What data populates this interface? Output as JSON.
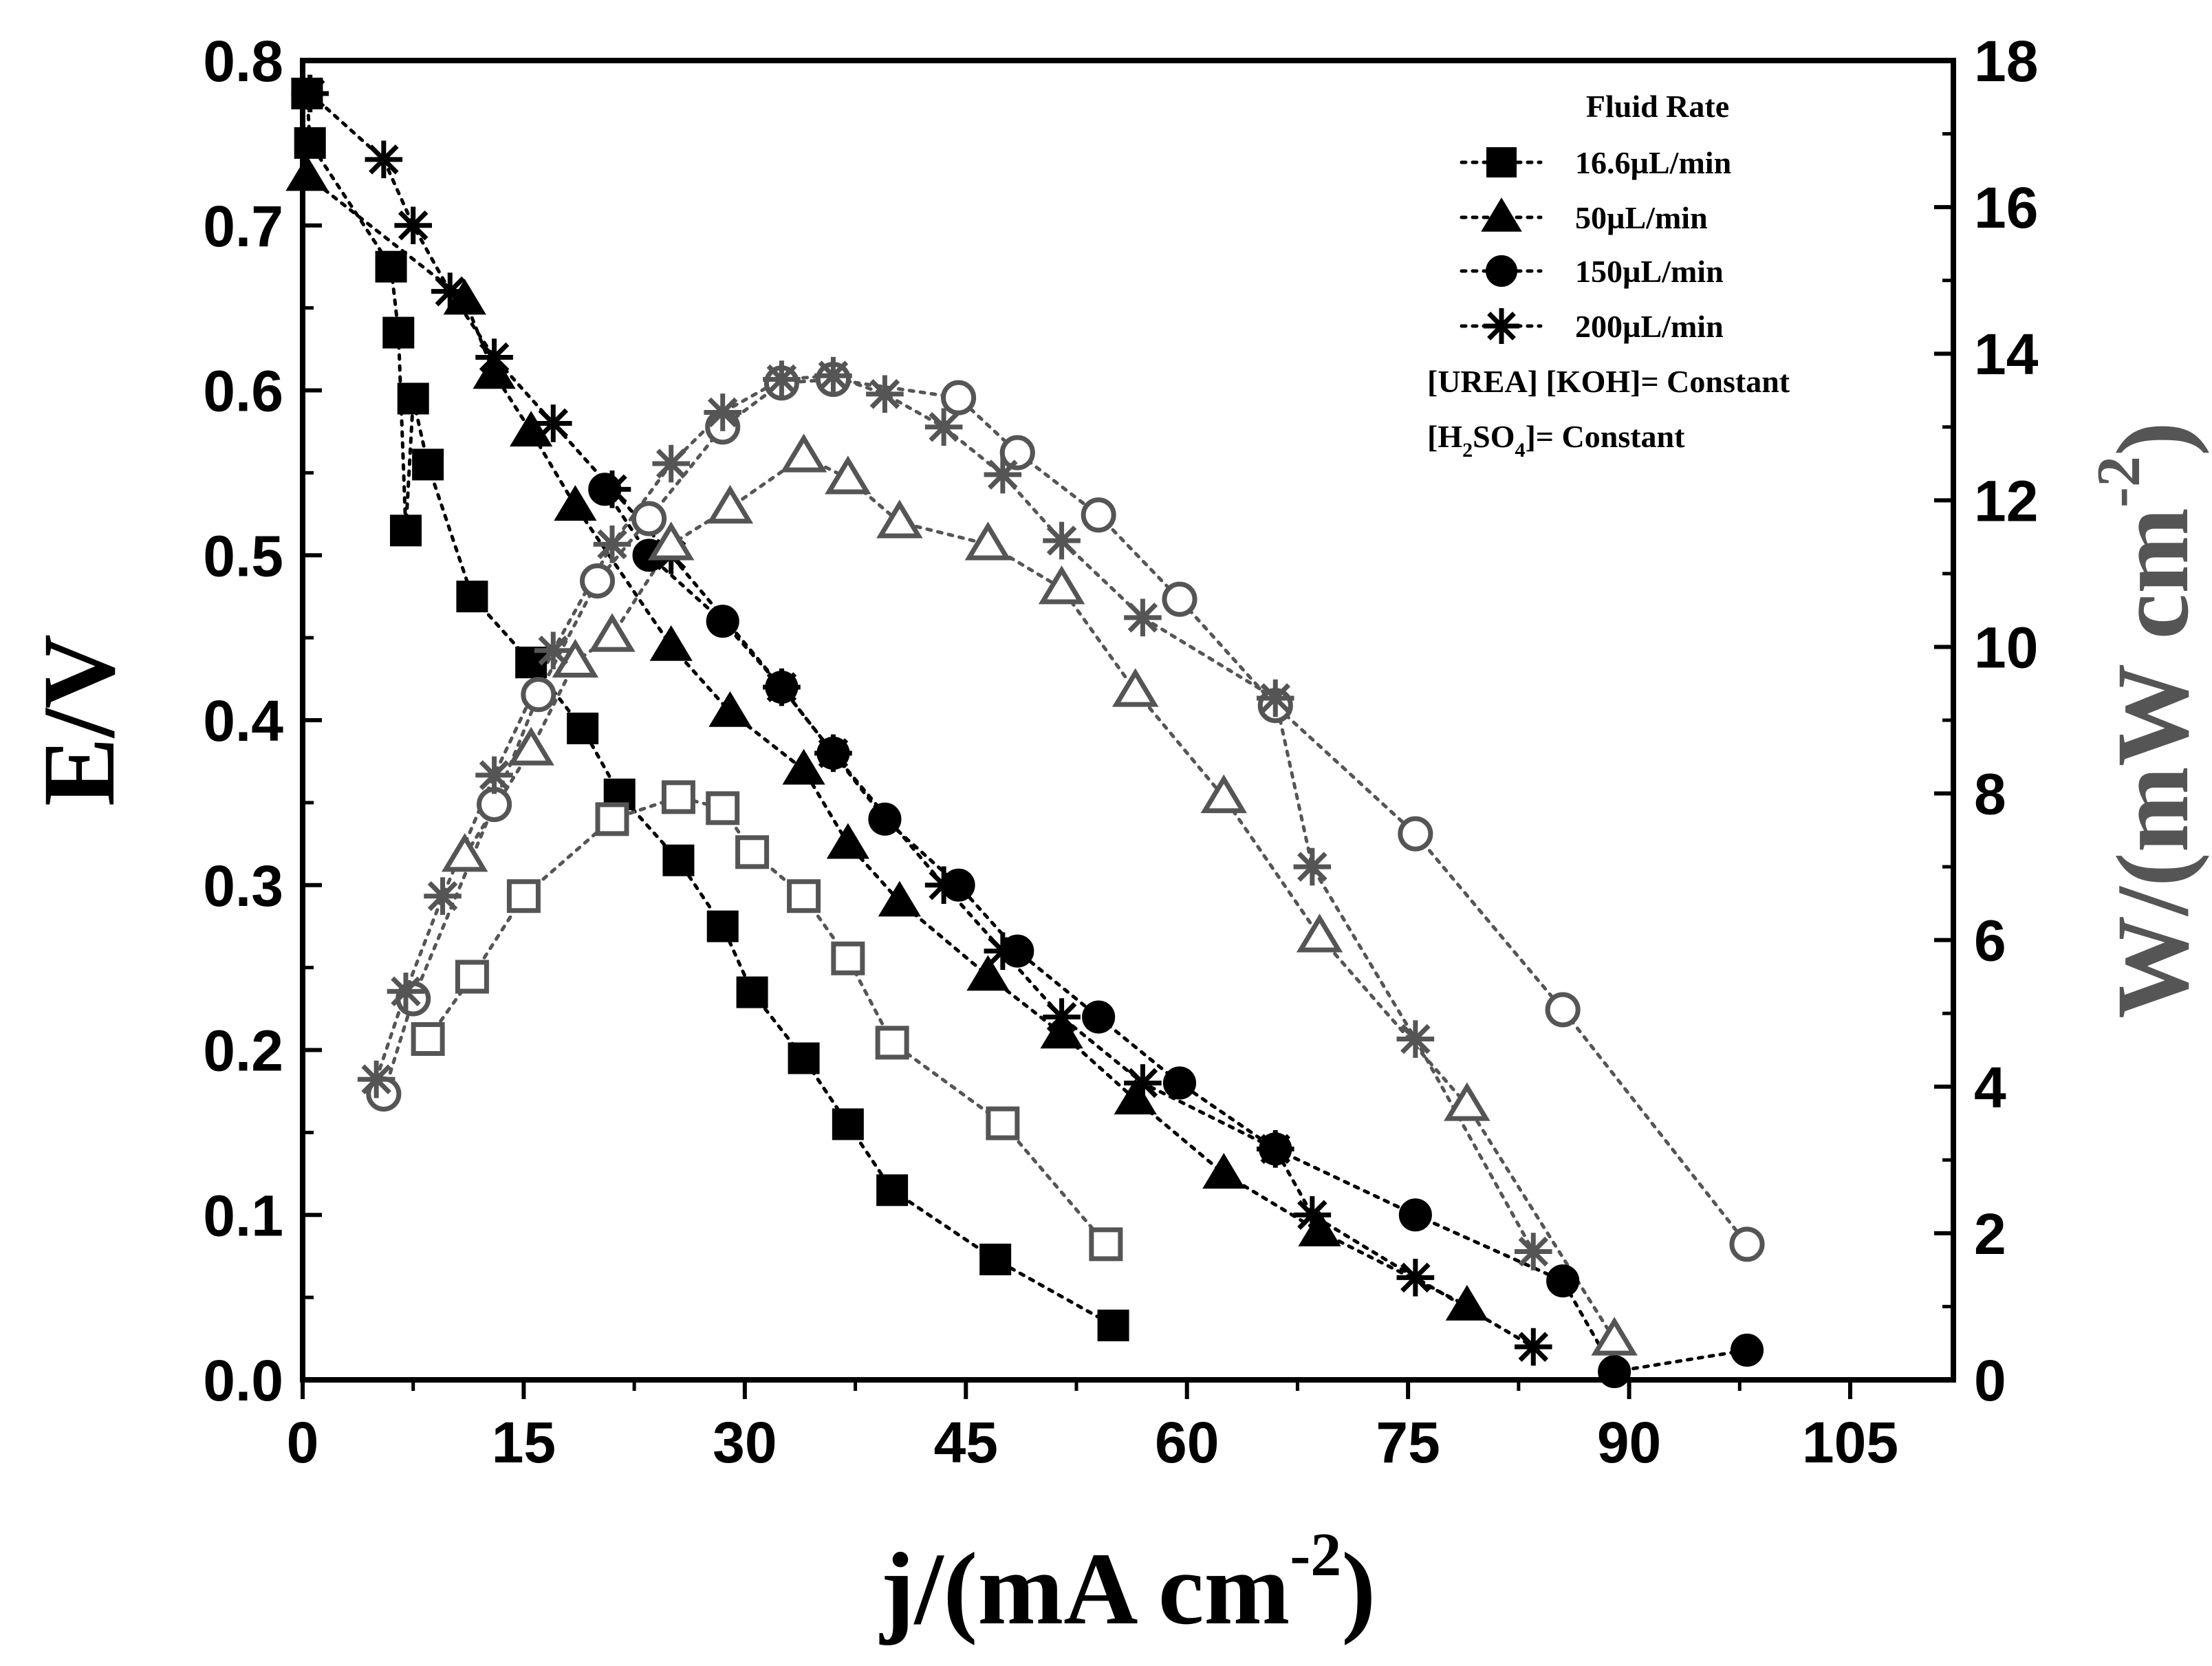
{
  "chart_data": {
    "type": "scatter",
    "x_axis": {
      "label_main": "j/(mA cm",
      "label_sup": "-2",
      "label_close": ")",
      "range": [
        0,
        112
      ],
      "ticks": [
        0,
        15,
        30,
        45,
        60,
        75,
        90,
        105
      ],
      "tick_labels": [
        "0",
        "15",
        "30",
        "45",
        "60",
        "75",
        "90",
        "105"
      ]
    },
    "y_left": {
      "label": "E/V",
      "range": [
        0,
        0.8
      ],
      "ticks": [
        0,
        0.1,
        0.2,
        0.3,
        0.4,
        0.5,
        0.6,
        0.7,
        0.8
      ],
      "tick_labels": [
        "0.0",
        "0.1",
        "0.2",
        "0.3",
        "0.4",
        "0.5",
        "0.6",
        "0.7",
        "0.8"
      ]
    },
    "y_right": {
      "label_main": "W/(mW cm",
      "label_sup": "-2",
      "label_close": ")",
      "range": [
        0,
        18
      ],
      "ticks": [
        0,
        2,
        4,
        6,
        8,
        10,
        12,
        14,
        16,
        18
      ],
      "tick_labels": [
        "0",
        "2",
        "4",
        "6",
        "8",
        "10",
        "12",
        "14",
        "16",
        "18"
      ],
      "color": "#555555"
    },
    "legend": {
      "title": "Fluid Rate",
      "entries": [
        "16.6µL/min",
        "50µL/min",
        "150µL/min",
        "200µL/min"
      ],
      "note1": "[UREA] [KOH]= Constant",
      "note2_pre": "[H",
      "note2_sub": "2",
      "note2_mid": "SO",
      "note2_sub2": "4",
      "note2_post": "]= Constant",
      "position": "top-right"
    },
    "colors": {
      "polarization": "#000000",
      "power": "#555555"
    },
    "series": [
      {
        "name": "16.6µL/min",
        "kind": "polarization",
        "axis": "left",
        "marker": "square",
        "filled": true,
        "x": [
          0.3,
          0.5,
          6,
          6.5,
          7.5,
          7,
          8.5,
          11.5,
          15.5,
          19,
          21.5,
          25.5,
          28.5,
          30.5,
          34,
          37,
          40,
          47,
          55
        ],
        "y": [
          0.78,
          0.75,
          0.675,
          0.635,
          0.595,
          0.515,
          0.555,
          0.475,
          0.435,
          0.395,
          0.355,
          0.315,
          0.275,
          0.235,
          0.195,
          0.155,
          0.115,
          0.073,
          0.033
        ]
      },
      {
        "name": "50µL/min",
        "kind": "polarization",
        "axis": "left",
        "marker": "triangle",
        "filled": true,
        "x": [
          0.3,
          11,
          13,
          15.5,
          18.5,
          25,
          29,
          34,
          37,
          40.5,
          46.5,
          51.5,
          56.5,
          62.5,
          69,
          79
        ],
        "y": [
          0.73,
          0.655,
          0.61,
          0.575,
          0.53,
          0.445,
          0.405,
          0.37,
          0.325,
          0.29,
          0.245,
          0.21,
          0.17,
          0.125,
          0.09,
          0.045
        ]
      },
      {
        "name": "150µL/min",
        "kind": "polarization",
        "axis": "left",
        "marker": "circle",
        "filled": true,
        "x": [
          20.5,
          23.5,
          28.5,
          32.5,
          36,
          39.5,
          44.5,
          48.5,
          54,
          59.5,
          66,
          75.5,
          85.5,
          89,
          98
        ],
        "y": [
          0.54,
          0.5,
          0.46,
          0.42,
          0.38,
          0.34,
          0.3,
          0.26,
          0.22,
          0.18,
          0.14,
          0.1,
          0.06,
          0.005,
          0.018
        ]
      },
      {
        "name": "200µL/min",
        "kind": "polarization",
        "axis": "left",
        "marker": "asterisk",
        "filled": true,
        "x": [
          0.5,
          5.5,
          7.5,
          10,
          13,
          17,
          21,
          25,
          32.5,
          36,
          43.5,
          47.5,
          51.5,
          57,
          66,
          68.5,
          75.5,
          83.5
        ],
        "y": [
          0.78,
          0.74,
          0.7,
          0.66,
          0.62,
          0.58,
          0.54,
          0.5,
          0.42,
          0.38,
          0.3,
          0.26,
          0.22,
          0.18,
          0.14,
          0.1,
          0.062,
          0.02
        ]
      },
      {
        "name": "16.6µL/min",
        "kind": "power",
        "axis": "right",
        "marker": "square",
        "filled": false,
        "x": [
          8.5,
          11.5,
          15,
          21,
          25.5,
          28.5,
          30.5,
          34,
          37,
          40,
          47.5,
          54.5
        ],
        "y": [
          4.65,
          5.5,
          6.6,
          7.65,
          7.95,
          7.8,
          7.2,
          6.6,
          5.75,
          4.6,
          3.5,
          1.85
        ]
      },
      {
        "name": "50µL/min",
        "kind": "power",
        "axis": "right",
        "marker": "triangle",
        "filled": false,
        "x": [
          11,
          15.5,
          18.5,
          21,
          25,
          29,
          34,
          37,
          40.5,
          46.5,
          51.5,
          56.5,
          62.5,
          69,
          79,
          89
        ],
        "y": [
          7.15,
          8.6,
          9.8,
          10.15,
          11.4,
          11.9,
          12.6,
          12.3,
          11.7,
          11.4,
          10.8,
          9.4,
          7.95,
          6.05,
          3.75,
          0.55
        ]
      },
      {
        "name": "150µL/min",
        "kind": "power",
        "axis": "right",
        "marker": "circle",
        "filled": false,
        "x": [
          5.5,
          7.5,
          13,
          16,
          20,
          23.5,
          28.5,
          32.5,
          36,
          44.5,
          48.5,
          54,
          59.5,
          66,
          75.5,
          85.5,
          98
        ],
        "y": [
          3.9,
          5.2,
          7.85,
          9.35,
          10.9,
          11.75,
          13.0,
          13.6,
          13.65,
          13.4,
          12.65,
          11.8,
          10.65,
          9.2,
          7.45,
          5.05,
          1.85
        ]
      },
      {
        "name": "200µL/min",
        "kind": "power",
        "axis": "right",
        "marker": "asterisk",
        "filled": false,
        "x": [
          5,
          7,
          9.5,
          13,
          17,
          21,
          25,
          28.5,
          32.5,
          36,
          39.5,
          43.5,
          47.5,
          51.5,
          57,
          66,
          68.5,
          75.5,
          83.5
        ],
        "y": [
          4.1,
          5.3,
          6.6,
          8.25,
          9.95,
          11.4,
          12.5,
          13.2,
          13.65,
          13.7,
          13.45,
          13.0,
          12.35,
          11.45,
          10.4,
          9.3,
          7.0,
          4.65,
          1.75
        ]
      }
    ]
  }
}
